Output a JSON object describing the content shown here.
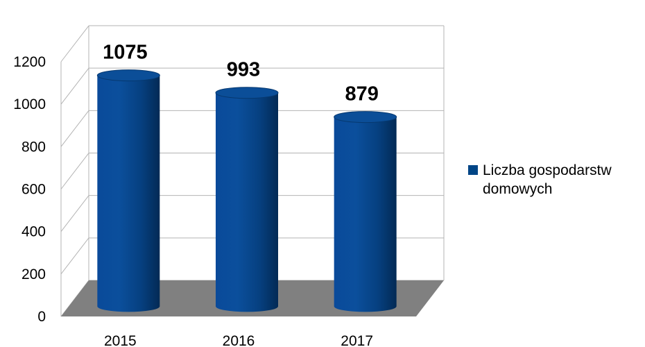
{
  "chart_data": {
    "type": "bar",
    "style": "3d-cylinder",
    "categories": [
      "2015",
      "2016",
      "2017"
    ],
    "series": [
      {
        "name": "Liczba gospodarstw domowych",
        "values": [
          1075,
          993,
          879
        ],
        "color": "#004586"
      }
    ],
    "data_labels": [
      "1075",
      "993",
      "879"
    ],
    "ylim": [
      0,
      1200
    ],
    "yticks": [
      0,
      200,
      400,
      600,
      800,
      1000,
      1200
    ],
    "ytick_labels": [
      "0",
      "200",
      "400",
      "600",
      "800",
      "1000",
      "1200"
    ],
    "grid": true,
    "legend_position": "right",
    "floor_color": "#808080",
    "grid_color": "#b3b3b3"
  }
}
